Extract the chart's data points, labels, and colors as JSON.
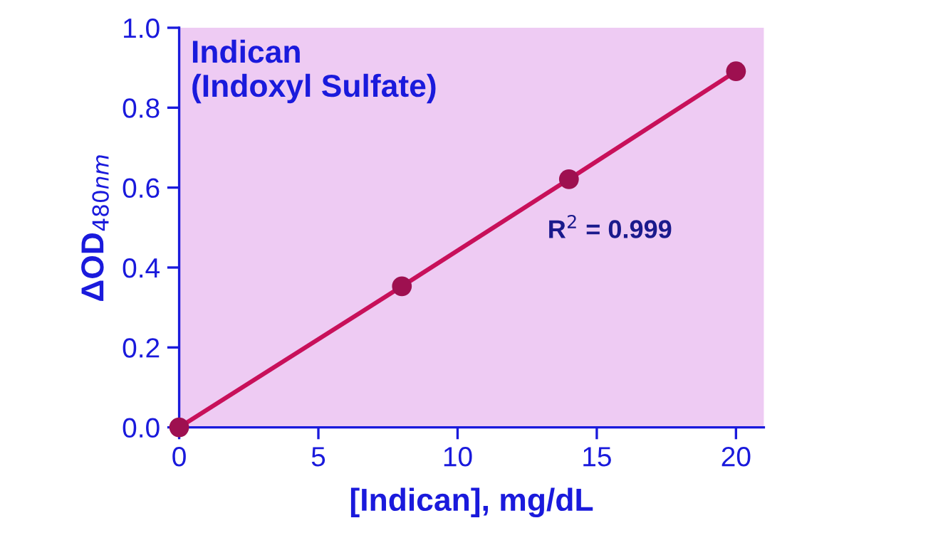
{
  "chart_data": {
    "type": "line",
    "title": "Indican\n(Indoxyl Sulfate)",
    "xlabel": "[Indican], mg/dL",
    "ylabel": "ΔOD$_{480nm}$",
    "x": [
      0,
      8,
      14,
      20
    ],
    "series": [
      {
        "color": "#c8105a",
        "values": [
          0.0,
          0.353,
          0.621,
          0.891
        ]
      }
    ],
    "marker": "circle",
    "line_style": "solid",
    "xlim": [
      0,
      21
    ],
    "xticks": [
      0,
      5,
      10,
      15,
      20
    ],
    "ylim": [
      0,
      1.0
    ],
    "yticks": [
      {
        "value": 0,
        "label": "0.0"
      },
      {
        "value": 0.2,
        "label": "0.2"
      },
      {
        "value": 0.4,
        "label": "0.4"
      },
      {
        "value": 0.6,
        "label": "0.6"
      },
      {
        "value": 0.8,
        "label": "0.8"
      },
      {
        "value": 1.0,
        "label": "1.0"
      }
    ],
    "annotations": [
      "R$^{2}$ = 0.999"
    ],
    "grid": false,
    "legend": false
  }
}
